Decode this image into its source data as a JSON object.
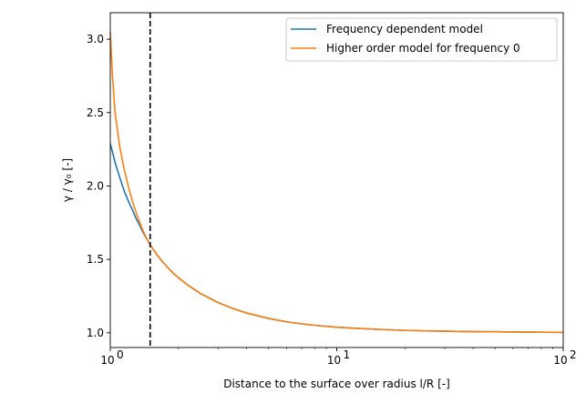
{
  "chart_data": {
    "type": "line",
    "xscale": "log",
    "xlim": [
      1,
      100
    ],
    "ylim": [
      0.9,
      3.18
    ],
    "xlabel": "Distance to the surface over radius l/R [-]",
    "ylabel": "γ / γ₀ [-]",
    "xticks": [
      {
        "value": 1,
        "label": "10",
        "exp": "0"
      },
      {
        "value": 10,
        "label": "10",
        "exp": "1"
      },
      {
        "value": 100,
        "label": "10",
        "exp": "2"
      }
    ],
    "yticks": [
      {
        "value": 1.0,
        "label": "1.0"
      },
      {
        "value": 1.5,
        "label": "1.5"
      },
      {
        "value": 2.0,
        "label": "2.0"
      },
      {
        "value": 2.5,
        "label": "2.5"
      },
      {
        "value": 3.0,
        "label": "3.0"
      }
    ],
    "vline": {
      "x": 1.5,
      "style": "dashed",
      "color": "#000000"
    },
    "legend_position": "top-right",
    "series": [
      {
        "name": "Frequency dependent model",
        "color": "#1f77b4",
        "x": [
          1.0,
          1.05,
          1.1,
          1.15,
          1.2,
          1.25,
          1.3,
          1.35,
          1.4,
          1.45,
          1.5,
          1.6,
          1.7,
          1.8,
          1.9,
          2.0,
          2.2,
          2.5,
          3.0,
          3.5,
          4.0,
          5.0,
          6.0,
          7.0,
          8.0,
          10.0,
          12.0,
          15.0,
          20.0,
          25.0,
          30.0,
          40.0,
          50.0,
          60.0,
          70.0,
          80.0,
          100.0
        ],
        "values": [
          2.29,
          2.16,
          2.06,
          1.97,
          1.9,
          1.84,
          1.78,
          1.73,
          1.68,
          1.64,
          1.6,
          1.536,
          1.485,
          1.442,
          1.405,
          1.375,
          1.325,
          1.268,
          1.205,
          1.164,
          1.135,
          1.098,
          1.075,
          1.061,
          1.051,
          1.038,
          1.031,
          1.024,
          1.017,
          1.013,
          1.011,
          1.008,
          1.007,
          1.006,
          1.005,
          1.004,
          1.003
        ]
      },
      {
        "name": "Higher order model for frequency 0",
        "color": "#ff7f0e",
        "x": [
          1.0,
          1.02,
          1.05,
          1.1,
          1.15,
          1.2,
          1.25,
          1.3,
          1.35,
          1.4,
          1.45,
          1.5,
          1.6,
          1.7,
          1.8,
          1.9,
          2.0,
          2.2,
          2.5,
          3.0,
          3.5,
          4.0,
          5.0,
          6.0,
          7.0,
          8.0,
          10.0,
          12.0,
          15.0,
          20.0,
          25.0,
          30.0,
          40.0,
          50.0,
          60.0,
          70.0,
          80.0,
          100.0
        ],
        "values": [
          3.05,
          2.78,
          2.5,
          2.27,
          2.12,
          2.0,
          1.9,
          1.82,
          1.75,
          1.69,
          1.64,
          1.6,
          1.536,
          1.485,
          1.442,
          1.405,
          1.375,
          1.325,
          1.268,
          1.205,
          1.164,
          1.135,
          1.098,
          1.075,
          1.061,
          1.051,
          1.038,
          1.031,
          1.024,
          1.017,
          1.013,
          1.011,
          1.008,
          1.007,
          1.006,
          1.005,
          1.004,
          1.003
        ]
      }
    ]
  }
}
